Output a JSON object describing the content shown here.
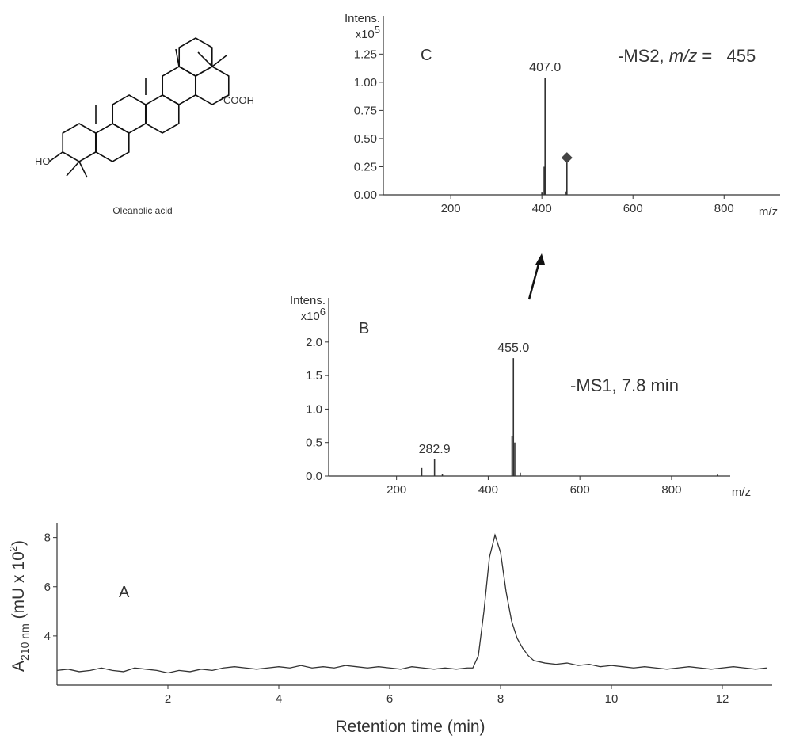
{
  "chart_data": [
    {
      "type": "stem",
      "panel": "C",
      "ylabel": "Intens.",
      "yscale": {
        "base": "x10",
        "exponent": "5"
      },
      "xlabel": "m/z",
      "annotation": [
        "-MS2, ",
        "m/z",
        " =   455"
      ],
      "x": [
        400,
        405,
        407,
        452,
        455
      ],
      "values": [
        0.02,
        0.25,
        1.04,
        0.03,
        0.31
      ],
      "color": "#333333",
      "peak_labels": [
        {
          "x": 407,
          "label": "407.0"
        }
      ],
      "precursor": {
        "x": 455,
        "value": 0.33
      },
      "xlim": [
        52,
        923
      ],
      "ylim": [
        0,
        1.59
      ],
      "xticks": [
        200,
        400,
        600,
        800
      ],
      "yticks": [
        {
          "value": 0,
          "label": "0.00"
        },
        0.25,
        {
          "value": 0.5,
          "label": "0.50"
        },
        0.75,
        {
          "value": 1,
          "label": "1.00"
        },
        1.25
      ]
    },
    {
      "type": "stem",
      "panel": "B",
      "ylabel": "Intens.",
      "yscale": {
        "base": "x10",
        "exponent": "6"
      },
      "xlabel": "m/z",
      "annotation": [
        "-MS1, 7.8 min"
      ],
      "x": [
        255,
        282.9,
        300,
        452,
        455,
        458,
        470,
        900
      ],
      "values": [
        0.12,
        0.25,
        0.03,
        0.6,
        1.76,
        0.5,
        0.05,
        0.02
      ],
      "color": "#333333",
      "peak_labels": [
        {
          "x": 282.9,
          "label": "282.9"
        },
        {
          "x": 455,
          "label": "455.0"
        }
      ],
      "xlim": [
        52,
        928
      ],
      "ylim": [
        0,
        2.66
      ],
      "xticks": [
        200,
        400,
        600,
        800
      ],
      "yticks": [
        {
          "value": 0,
          "label": "0.0"
        },
        0.5,
        {
          "value": 1,
          "label": "1.0"
        },
        1.5,
        {
          "value": 2,
          "label": "2.0"
        }
      ]
    },
    {
      "type": "line",
      "panel": "A",
      "xlabel": "Retention time (min)",
      "ylabel": {
        "text": "A",
        "subscript": "210 nm",
        "rest": " (mU x 10",
        "superscript": "2",
        "close": ")"
      },
      "color": "#333333",
      "x": [
        0.0,
        0.2,
        0.4,
        0.6,
        0.8,
        1.0,
        1.2,
        1.4,
        1.6,
        1.8,
        2.0,
        2.2,
        2.4,
        2.6,
        2.8,
        3.0,
        3.2,
        3.4,
        3.6,
        3.8,
        4.0,
        4.2,
        4.4,
        4.6,
        4.8,
        5.0,
        5.2,
        5.4,
        5.6,
        5.8,
        6.0,
        6.2,
        6.4,
        6.6,
        6.8,
        7.0,
        7.2,
        7.4,
        7.5,
        7.6,
        7.7,
        7.8,
        7.9,
        8.0,
        8.1,
        8.2,
        8.3,
        8.4,
        8.5,
        8.6,
        8.8,
        9.0,
        9.2,
        9.4,
        9.6,
        9.8,
        10.0,
        10.2,
        10.4,
        10.6,
        10.8,
        11.0,
        11.2,
        11.4,
        11.6,
        11.8,
        12.0,
        12.2,
        12.4,
        12.6,
        12.8
      ],
      "values": [
        2.6,
        2.65,
        2.55,
        2.6,
        2.7,
        2.6,
        2.55,
        2.7,
        2.65,
        2.6,
        2.5,
        2.6,
        2.55,
        2.65,
        2.6,
        2.7,
        2.75,
        2.7,
        2.65,
        2.7,
        2.75,
        2.7,
        2.8,
        2.7,
        2.75,
        2.7,
        2.8,
        2.75,
        2.7,
        2.75,
        2.7,
        2.65,
        2.75,
        2.7,
        2.65,
        2.7,
        2.65,
        2.7,
        2.7,
        3.2,
        5.0,
        7.2,
        8.1,
        7.4,
        5.8,
        4.6,
        3.9,
        3.5,
        3.2,
        3.0,
        2.9,
        2.85,
        2.9,
        2.8,
        2.85,
        2.75,
        2.8,
        2.75,
        2.7,
        2.75,
        2.7,
        2.65,
        2.7,
        2.75,
        2.7,
        2.65,
        2.7,
        2.75,
        2.7,
        2.65,
        2.7
      ],
      "xlim": [
        0,
        12.9
      ],
      "ylim": [
        2,
        8.6
      ],
      "xticks": [
        2,
        4,
        6,
        8,
        10,
        12
      ],
      "yticks": [
        4,
        6,
        8
      ]
    }
  ],
  "structure": {
    "name": "Oleanolic acid",
    "groups": [
      "HO",
      "COOH"
    ]
  }
}
